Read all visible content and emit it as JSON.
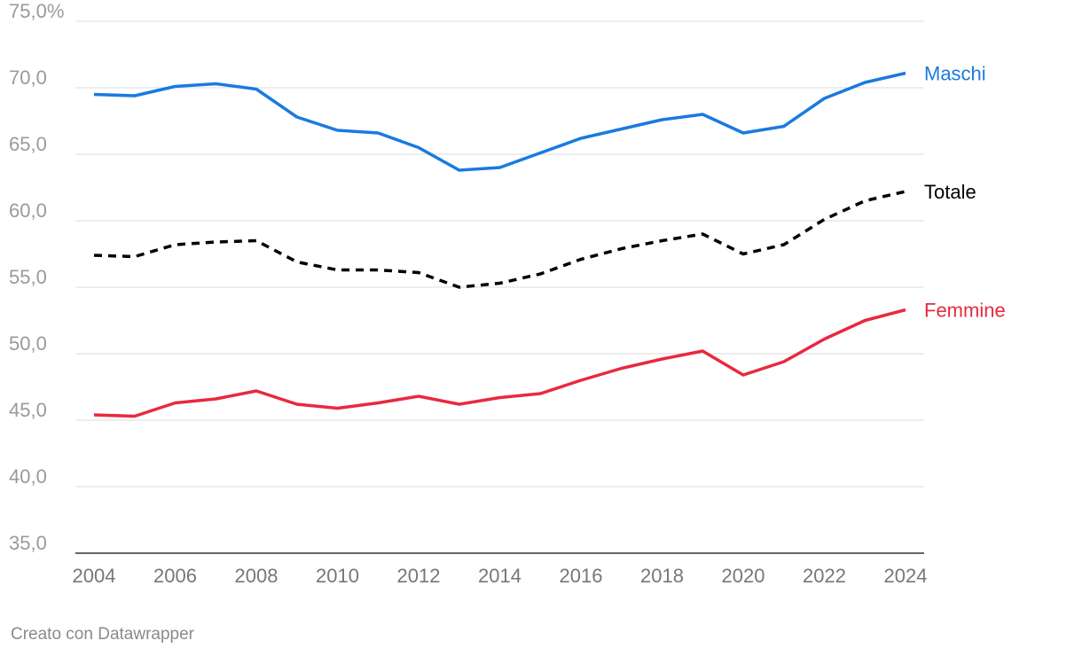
{
  "footer": {
    "credit": "Creato con Datawrapper"
  },
  "chart_data": {
    "type": "line",
    "title": "",
    "xlabel": "",
    "ylabel": "",
    "x": [
      2004,
      2005,
      2006,
      2007,
      2008,
      2009,
      2010,
      2011,
      2012,
      2013,
      2014,
      2015,
      2016,
      2017,
      2018,
      2019,
      2020,
      2021,
      2022,
      2023,
      2024
    ],
    "xticks": [
      "2004",
      "2006",
      "2008",
      "2010",
      "2012",
      "2014",
      "2016",
      "2018",
      "2020",
      "2022",
      "2024"
    ],
    "yticks": [
      35,
      40,
      45,
      50,
      55,
      60,
      65,
      70,
      75
    ],
    "ytick_labels": [
      "35,0",
      "40,0",
      "45,0",
      "50,0",
      "55,0",
      "60,0",
      "65,0",
      "70,0",
      "75,0%"
    ],
    "ylim": [
      35,
      75
    ],
    "xlim": [
      2004,
      2024
    ],
    "grid": true,
    "legend": "direct labels at line ends",
    "series": [
      {
        "name": "Maschi",
        "color": "#1a7ae0",
        "dashed": false,
        "values": [
          69.5,
          69.4,
          70.1,
          70.3,
          69.9,
          67.8,
          66.8,
          66.6,
          65.5,
          63.8,
          64.0,
          65.1,
          66.2,
          66.9,
          67.6,
          68.0,
          66.6,
          67.1,
          69.2,
          70.4,
          71.1
        ]
      },
      {
        "name": "Totale",
        "color": "#000000",
        "dashed": true,
        "values": [
          57.4,
          57.3,
          58.2,
          58.4,
          58.5,
          56.9,
          56.3,
          56.3,
          56.1,
          55.0,
          55.3,
          56.0,
          57.1,
          57.9,
          58.5,
          59.0,
          57.5,
          58.2,
          60.1,
          61.5,
          62.2
        ]
      },
      {
        "name": "Femmine",
        "color": "#e8293f",
        "dashed": false,
        "values": [
          45.4,
          45.3,
          46.3,
          46.6,
          47.2,
          46.2,
          45.9,
          46.3,
          46.8,
          46.2,
          46.7,
          47.0,
          48.0,
          48.9,
          49.6,
          50.2,
          48.4,
          49.4,
          51.1,
          52.5,
          53.3
        ]
      }
    ]
  }
}
